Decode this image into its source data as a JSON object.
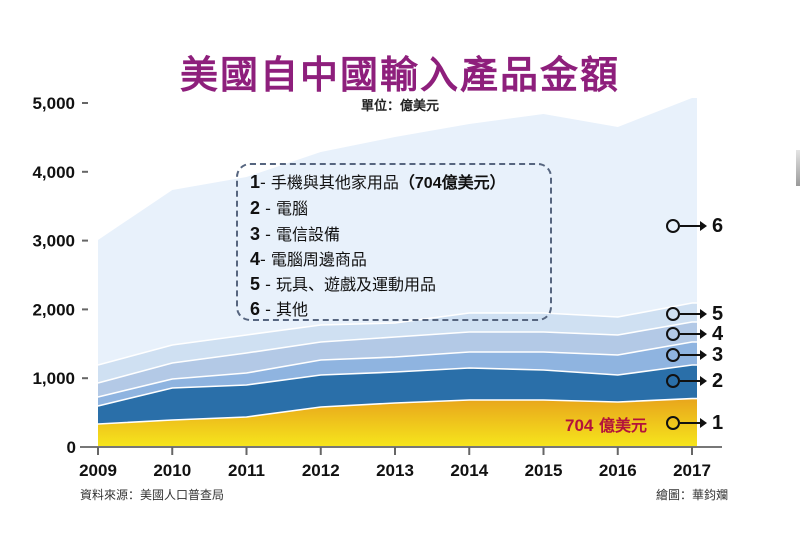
{
  "header": {
    "title": "美國自中國輸入產品金額",
    "unit": "單位：億美元"
  },
  "legend": {
    "items": [
      {
        "num": "1",
        "sep": "-",
        "label": "手機與其他家用品",
        "extra": "（704億美元）"
      },
      {
        "num": "2",
        "sep": "-",
        "label": "電腦",
        "extra": ""
      },
      {
        "num": "3",
        "sep": "-",
        "label": "電信設備",
        "extra": ""
      },
      {
        "num": "4",
        "sep": "-",
        "label": "電腦周邊商品",
        "extra": ""
      },
      {
        "num": "5",
        "sep": "-",
        "label": "玩具、遊戲及運動用品",
        "extra": ""
      },
      {
        "num": "6",
        "sep": "-",
        "label": "其他",
        "extra": ""
      }
    ]
  },
  "markers": [
    "1",
    "2",
    "3",
    "4",
    "5",
    "6"
  ],
  "annotation": {
    "amount": "704",
    "unit": "億美元"
  },
  "footer": {
    "source": "資料來源：美國人口普查局",
    "credit": "繪圖：華鈞斕"
  },
  "colors": {
    "title": "#8e1f7c",
    "series1_top": "#e8a51c",
    "series1_bottom": "#f6e61c",
    "series2": "#2a6fa9",
    "series3": "#8fb4e0",
    "series4": "#b3c9e6",
    "series5": "#cfe0f2",
    "series6": "#e8f1fb",
    "annotation": "#b3123b"
  },
  "chart_data": {
    "type": "area",
    "stacked": true,
    "title": "美國自中國輸入產品金額",
    "subtitle": "單位：億美元",
    "xlabel": "",
    "ylabel": "億美元",
    "ylim": [
      0,
      5000
    ],
    "yticks": [
      0,
      1000,
      2000,
      3000,
      4000,
      5000
    ],
    "ytick_labels": [
      "0",
      "1,000",
      "2,000",
      "3,000",
      "4,000",
      "5,000"
    ],
    "categories": [
      "2009",
      "2010",
      "2011",
      "2012",
      "2013",
      "2014",
      "2015",
      "2016",
      "2017"
    ],
    "series": [
      {
        "name": "1-手機與其他家用品",
        "values": [
          334,
          392,
          436,
          581,
          640,
          683,
          683,
          654,
          704
        ]
      },
      {
        "name": "2-電腦",
        "values": [
          262,
          466,
          465,
          466,
          450,
          465,
          436,
          393,
          488
        ]
      },
      {
        "name": "3-電信設備",
        "values": [
          131,
          130,
          175,
          218,
          218,
          233,
          262,
          290,
          334
        ]
      },
      {
        "name": "4-電腦周邊商品",
        "values": [
          203,
          233,
          290,
          261,
          291,
          291,
          291,
          291,
          291
        ]
      },
      {
        "name": "5-玩具、遊戲及運動用品",
        "values": [
          262,
          262,
          262,
          247,
          203,
          276,
          276,
          262,
          276
        ]
      },
      {
        "name": "6-其他",
        "values": [
          1817,
          2252,
          2296,
          2515,
          2704,
          2747,
          2892,
          2761,
          2980
        ]
      }
    ],
    "stack_totals": [
      3009,
      3735,
      3924,
      4288,
      4506,
      4695,
      4840,
      4651,
      5073
    ],
    "annotations": [
      "704億美元 (series 1, 2017)"
    ],
    "grid": false,
    "legend_position": "center-top inside dashed box"
  }
}
